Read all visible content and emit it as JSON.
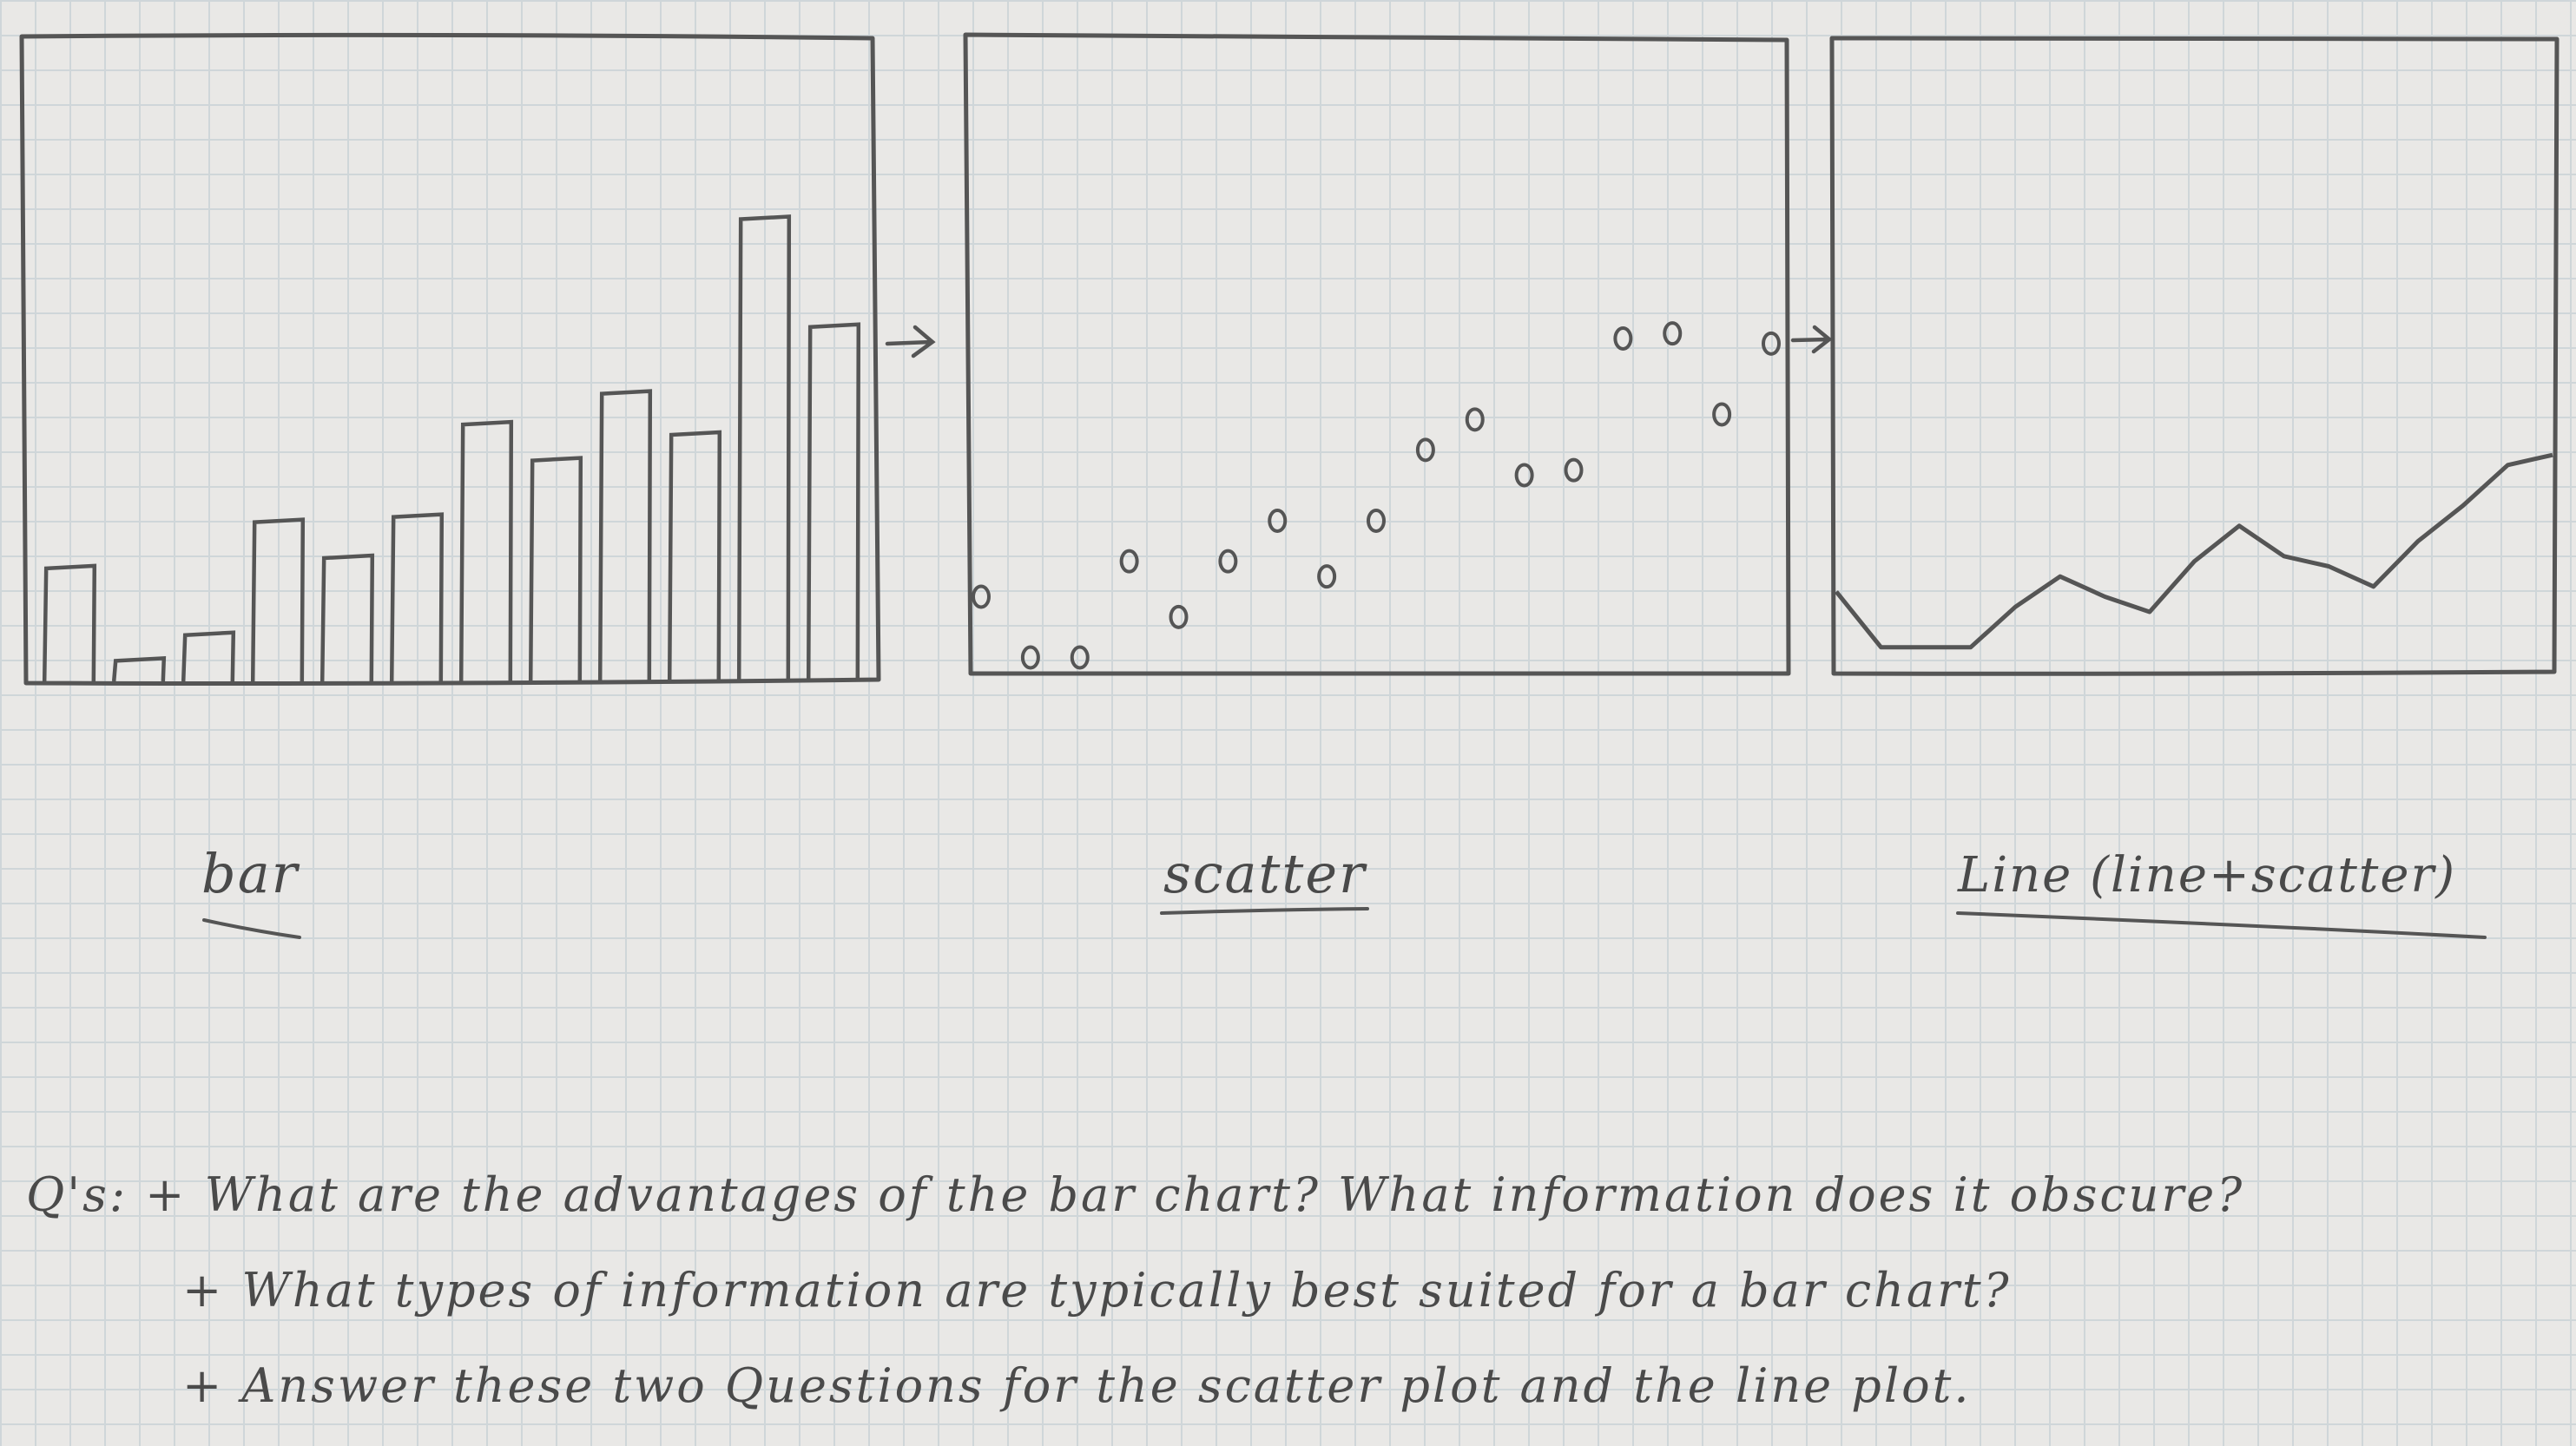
{
  "chart_data": [
    {
      "type": "bar",
      "values": [
        2.2,
        0.4,
        0.9,
        3.1,
        2.4,
        3.2,
        5.0,
        4.3,
        5.6,
        4.8,
        9.0,
        6.9
      ],
      "ylim": [
        0,
        12
      ]
    },
    {
      "type": "scatter",
      "x": [
        1,
        2,
        3,
        4,
        5,
        6,
        7,
        8,
        9,
        10,
        11,
        12,
        13,
        14,
        15,
        16,
        17
      ],
      "y": [
        1.5,
        0.3,
        0.3,
        2.2,
        1.1,
        2.2,
        3.0,
        1.9,
        3.0,
        4.4,
        5.0,
        3.9,
        4.0,
        6.6,
        6.7,
        5.1,
        6.5
      ],
      "ylim": [
        0,
        12
      ]
    },
    {
      "type": "line",
      "x": [
        1,
        2,
        3,
        4,
        5,
        6,
        7,
        8,
        9,
        10,
        11,
        12,
        13,
        14,
        15,
        16,
        17
      ],
      "y": [
        1.6,
        0.5,
        0.5,
        0.5,
        1.3,
        1.9,
        1.5,
        1.2,
        2.2,
        2.9,
        2.3,
        2.1,
        1.7,
        2.6,
        3.3,
        4.1,
        4.3
      ],
      "ylim": [
        0,
        12
      ]
    }
  ],
  "captions": {
    "bar": "bar",
    "scatter": "scatter",
    "line": "Line   (line+scatter)"
  },
  "notes": {
    "q1": "Q's: + What are the advantages of the bar chart? What information does it obscure?",
    "q2": "+ What types of information are typically best suited for a bar chart?",
    "q3": "+ Answer these two Questions for the scatter plot and the line plot."
  }
}
